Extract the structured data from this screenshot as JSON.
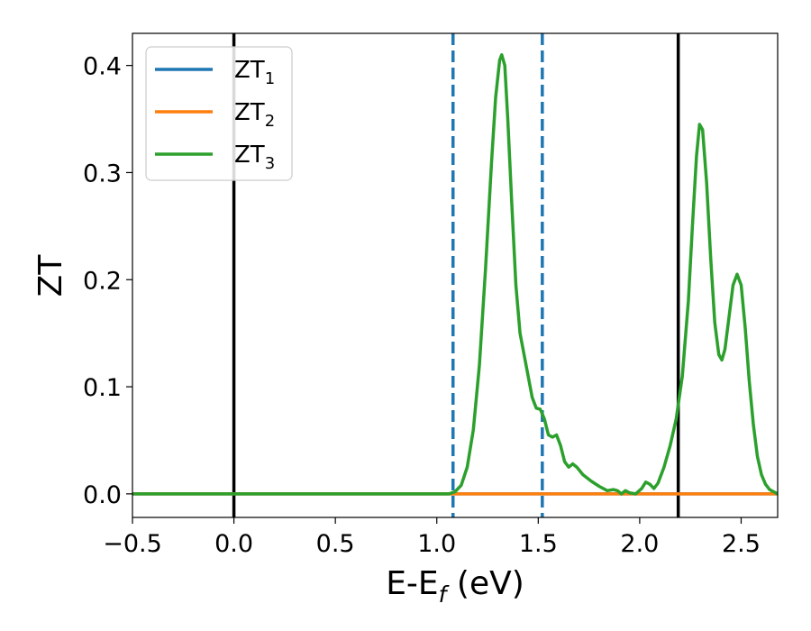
{
  "chart_data": {
    "type": "line",
    "xlabel": "E-E",
    "xlabel_sub": "f",
    "xlabel_unit": " (eV)",
    "ylabel": "ZT",
    "xlim": [
      -0.5,
      2.68
    ],
    "ylim": [
      -0.022,
      0.43
    ],
    "xticks": [
      -0.5,
      0.0,
      0.5,
      1.0,
      1.5,
      2.0,
      2.5
    ],
    "xtick_labels": [
      "−0.5",
      "0.0",
      "0.5",
      "1.0",
      "1.5",
      "2.0",
      "2.5"
    ],
    "yticks": [
      0.0,
      0.1,
      0.2,
      0.3,
      0.4
    ],
    "ytick_labels": [
      "0.0",
      "0.1",
      "0.2",
      "0.3",
      "0.4"
    ],
    "grid": false,
    "legend_position": "top-left",
    "vlines": [
      {
        "x": 0.0,
        "style": "solid",
        "color": "#000000"
      },
      {
        "x": 2.19,
        "style": "solid",
        "color": "#000000"
      },
      {
        "x": 1.08,
        "style": "dashed",
        "color": "#1f77b4"
      },
      {
        "x": 1.52,
        "style": "dashed",
        "color": "#1f77b4"
      }
    ],
    "series": [
      {
        "name": "ZT",
        "sub": "1",
        "color": "#1f77b4",
        "points": [
          [
            -0.5,
            0.0
          ],
          [
            2.68,
            0.0
          ]
        ]
      },
      {
        "name": "ZT",
        "sub": "2",
        "color": "#ff7f0e",
        "points": [
          [
            -0.5,
            0.0
          ],
          [
            2.68,
            0.0
          ]
        ]
      },
      {
        "name": "ZT",
        "sub": "3",
        "color": "#2ca02c",
        "points": [
          [
            -0.5,
            0.0
          ],
          [
            1.0,
            0.0
          ],
          [
            1.06,
            0.0
          ],
          [
            1.09,
            0.002
          ],
          [
            1.12,
            0.008
          ],
          [
            1.15,
            0.025
          ],
          [
            1.18,
            0.06
          ],
          [
            1.21,
            0.12
          ],
          [
            1.24,
            0.21
          ],
          [
            1.27,
            0.31
          ],
          [
            1.29,
            0.37
          ],
          [
            1.31,
            0.405
          ],
          [
            1.32,
            0.41
          ],
          [
            1.335,
            0.4
          ],
          [
            1.35,
            0.35
          ],
          [
            1.37,
            0.27
          ],
          [
            1.39,
            0.195
          ],
          [
            1.41,
            0.15
          ],
          [
            1.43,
            0.13
          ],
          [
            1.45,
            0.11
          ],
          [
            1.47,
            0.09
          ],
          [
            1.49,
            0.08
          ],
          [
            1.51,
            0.079
          ],
          [
            1.53,
            0.07
          ],
          [
            1.55,
            0.055
          ],
          [
            1.57,
            0.053
          ],
          [
            1.59,
            0.055
          ],
          [
            1.61,
            0.045
          ],
          [
            1.63,
            0.03
          ],
          [
            1.65,
            0.025
          ],
          [
            1.67,
            0.028
          ],
          [
            1.69,
            0.025
          ],
          [
            1.72,
            0.018
          ],
          [
            1.76,
            0.012
          ],
          [
            1.8,
            0.007
          ],
          [
            1.84,
            0.003
          ],
          [
            1.87,
            0.004
          ],
          [
            1.89,
            0.003
          ],
          [
            1.91,
            0.0
          ],
          [
            1.93,
            0.003
          ],
          [
            1.95,
            0.001
          ],
          [
            1.98,
            0.0
          ],
          [
            2.01,
            0.005
          ],
          [
            2.03,
            0.011
          ],
          [
            2.05,
            0.009
          ],
          [
            2.07,
            0.005
          ],
          [
            2.09,
            0.01
          ],
          [
            2.12,
            0.025
          ],
          [
            2.15,
            0.045
          ],
          [
            2.18,
            0.07
          ],
          [
            2.21,
            0.11
          ],
          [
            2.24,
            0.18
          ],
          [
            2.26,
            0.25
          ],
          [
            2.28,
            0.315
          ],
          [
            2.295,
            0.345
          ],
          [
            2.31,
            0.34
          ],
          [
            2.33,
            0.29
          ],
          [
            2.35,
            0.22
          ],
          [
            2.37,
            0.16
          ],
          [
            2.39,
            0.13
          ],
          [
            2.405,
            0.125
          ],
          [
            2.42,
            0.135
          ],
          [
            2.44,
            0.165
          ],
          [
            2.46,
            0.195
          ],
          [
            2.48,
            0.205
          ],
          [
            2.5,
            0.195
          ],
          [
            2.52,
            0.155
          ],
          [
            2.54,
            0.105
          ],
          [
            2.56,
            0.065
          ],
          [
            2.58,
            0.035
          ],
          [
            2.6,
            0.018
          ],
          [
            2.62,
            0.009
          ],
          [
            2.64,
            0.004
          ],
          [
            2.66,
            0.002
          ],
          [
            2.68,
            0.0
          ]
        ]
      }
    ]
  }
}
